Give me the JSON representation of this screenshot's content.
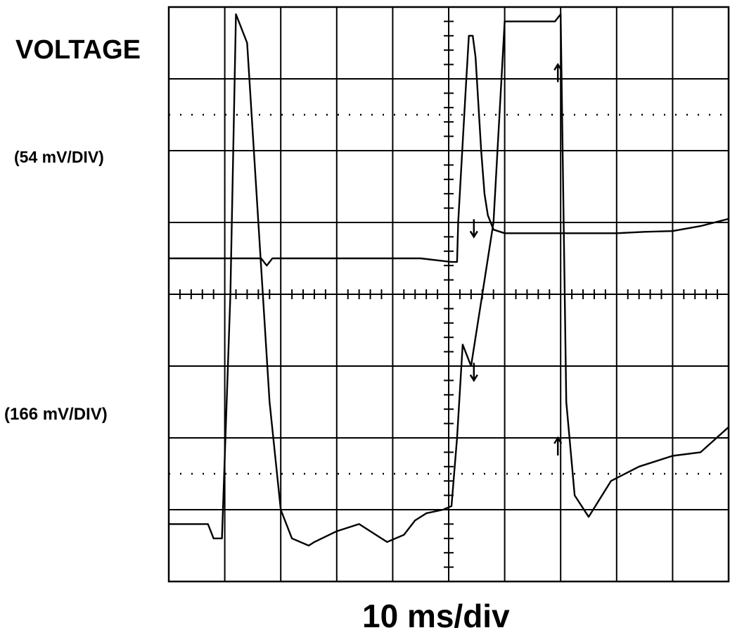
{
  "labels": {
    "voltage": "VOLTAGE",
    "scale_top": "(54 mV/DIV)",
    "scale_bottom": "(166 mV/DIV)",
    "timebase": "10 ms/div"
  },
  "colors": {
    "trace": "#000000",
    "grid": "#000000",
    "background": "#ffffff"
  },
  "chart_data": [
    {
      "type": "line",
      "title": "",
      "ylabel": "VOLTAGE (54 mV/DIV)",
      "xlabel": "10 ms/div",
      "x_unit": "ms",
      "y_unit": "divisions",
      "xlim": [
        0,
        100
      ],
      "ylim": [
        0,
        8
      ],
      "grid": true,
      "series": [
        {
          "x": [
            0,
            10,
            16.5,
            17.5,
            18.5,
            25,
            34,
            40,
            45,
            50.5,
            51.5,
            51.7,
            53,
            53.6,
            54.3,
            54.8,
            55.8,
            56.4,
            57,
            58,
            60,
            65,
            70,
            75,
            80,
            85,
            90,
            95,
            100
          ],
          "y": [
            4.5,
            4.5,
            4.5,
            4.4,
            4.5,
            4.5,
            4.5,
            4.5,
            4.5,
            4.45,
            4.45,
            5.0,
            6.8,
            7.6,
            7.6,
            7.3,
            6.0,
            5.4,
            5.1,
            4.9,
            4.85,
            4.85,
            4.85,
            4.85,
            4.85,
            4.87,
            4.88,
            4.95,
            5.05
          ]
        }
      ],
      "annotations": [
        {
          "type": "arrow-down",
          "x": 54.5
        },
        {
          "type": "arrow-up",
          "x": 69.5
        }
      ]
    },
    {
      "type": "line",
      "title": "",
      "ylabel": "(166 mV/DIV)",
      "xlabel": "10 ms/div",
      "x_unit": "ms",
      "y_unit": "divisions",
      "xlim": [
        0,
        100
      ],
      "ylim": [
        0,
        8
      ],
      "grid": true,
      "series": [
        {
          "x": [
            0,
            7,
            8,
            9.5,
            11,
            12,
            14,
            18,
            20,
            22,
            25,
            26,
            30,
            34,
            39,
            42,
            44,
            46,
            49,
            50.5,
            51.5,
            52.5,
            54,
            56,
            58,
            60,
            63,
            66,
            68,
            69,
            70,
            71,
            72.5,
            75,
            79,
            84,
            90,
            95,
            100
          ],
          "y": [
            0.8,
            0.8,
            0.6,
            0.6,
            4,
            7.9,
            7.5,
            2.5,
            1.0,
            0.6,
            0.5,
            0.55,
            0.7,
            0.8,
            0.55,
            0.65,
            0.85,
            0.95,
            1.0,
            1.05,
            2.0,
            3.3,
            3.0,
            4.0,
            5.0,
            7.8,
            7.8,
            7.8,
            7.8,
            7.8,
            7.9,
            2.5,
            1.2,
            0.9,
            1.4,
            1.6,
            1.75,
            1.8,
            2.15
          ]
        }
      ],
      "annotations": [
        {
          "type": "arrow-down",
          "x": 54.5
        },
        {
          "type": "arrow-up",
          "x": 69.5
        }
      ]
    }
  ]
}
